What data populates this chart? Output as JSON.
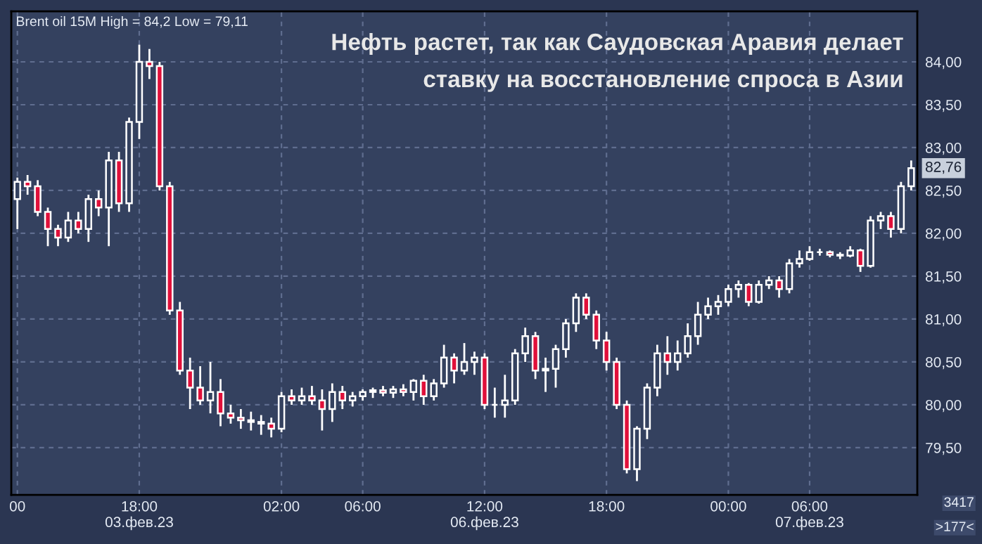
{
  "chart_data": {
    "type": "candlestick",
    "title": "Нефть растет, так как Саудовская Аравия делает\nставку на восстановление спроса в Азии",
    "subtitle": "Brent oil 15M High = 84,2 Low = 79,11",
    "annotations": [
      "82,76",
      "3417",
      ">177<"
    ],
    "categories": [
      "00",
      null,
      null,
      null,
      null,
      null,
      null,
      null,
      null,
      null,
      null,
      null,
      "18:00\n03.фев.23",
      null,
      null,
      null,
      null,
      null,
      null,
      null,
      null,
      null,
      null,
      null,
      null,
      null,
      "02:00",
      null,
      null,
      null,
      null,
      null,
      null,
      null,
      "06:00",
      null,
      null,
      null,
      null,
      null,
      null,
      null,
      null,
      null,
      null,
      null,
      "12:00\n06.фев.23",
      null,
      null,
      null,
      null,
      null,
      null,
      null,
      null,
      null,
      null,
      null,
      "18:00",
      null,
      null,
      null,
      null,
      null,
      null,
      null,
      null,
      null,
      null,
      null,
      "00:00",
      null,
      null,
      null,
      null,
      null,
      null,
      null,
      "06:00\n07.фев.23",
      null,
      null,
      null,
      null,
      null,
      null,
      null,
      null,
      null,
      null
    ],
    "ohlc": [
      [
        82.4,
        82.65,
        82.05,
        82.6
      ],
      [
        82.6,
        82.68,
        82.45,
        82.55
      ],
      [
        82.55,
        82.62,
        82.2,
        82.25
      ],
      [
        82.25,
        82.3,
        81.85,
        82.05
      ],
      [
        82.05,
        82.1,
        81.85,
        81.95
      ],
      [
        81.95,
        82.25,
        81.9,
        82.15
      ],
      [
        82.15,
        82.25,
        82.0,
        82.05
      ],
      [
        82.05,
        82.45,
        81.9,
        82.4
      ],
      [
        82.4,
        82.5,
        82.2,
        82.3
      ],
      [
        82.3,
        82.95,
        81.85,
        82.85
      ],
      [
        82.85,
        82.95,
        82.25,
        82.35
      ],
      [
        82.35,
        83.35,
        82.25,
        83.3
      ],
      [
        83.3,
        84.2,
        83.1,
        84.0
      ],
      [
        84.0,
        84.15,
        83.8,
        83.95
      ],
      [
        83.95,
        84.0,
        82.5,
        82.55
      ],
      [
        82.55,
        82.6,
        81.05,
        81.1
      ],
      [
        81.1,
        81.2,
        80.35,
        80.4
      ],
      [
        80.4,
        80.55,
        79.95,
        80.2
      ],
      [
        80.2,
        80.45,
        80.0,
        80.05
      ],
      [
        80.05,
        80.5,
        79.9,
        80.15
      ],
      [
        80.15,
        80.3,
        79.75,
        79.9
      ],
      [
        79.9,
        80.0,
        79.78,
        79.85
      ],
      [
        79.85,
        79.95,
        79.72,
        79.82
      ],
      [
        79.82,
        79.92,
        79.7,
        79.8
      ],
      [
        79.8,
        79.88,
        79.65,
        79.78
      ],
      [
        79.78,
        79.85,
        79.62,
        79.72
      ],
      [
        79.72,
        80.15,
        79.68,
        80.1
      ],
      [
        80.1,
        80.18,
        80.0,
        80.05
      ],
      [
        80.05,
        80.2,
        80.0,
        80.1
      ],
      [
        80.1,
        80.22,
        80.0,
        80.05
      ],
      [
        80.05,
        80.18,
        79.7,
        79.95
      ],
      [
        79.95,
        80.25,
        79.8,
        80.15
      ],
      [
        80.15,
        80.22,
        79.95,
        80.05
      ],
      [
        80.05,
        80.15,
        79.98,
        80.1
      ],
      [
        80.1,
        80.18,
        80.05,
        80.15
      ],
      [
        80.15,
        80.2,
        80.08,
        80.17
      ],
      [
        80.17,
        80.22,
        80.1,
        80.14
      ],
      [
        80.14,
        80.22,
        80.08,
        80.18
      ],
      [
        80.18,
        80.24,
        80.1,
        80.15
      ],
      [
        80.15,
        80.3,
        80.05,
        80.28
      ],
      [
        80.28,
        80.35,
        80.0,
        80.1
      ],
      [
        80.1,
        80.3,
        80.05,
        80.25
      ],
      [
        80.25,
        80.7,
        80.2,
        80.55
      ],
      [
        80.55,
        80.6,
        80.25,
        80.4
      ],
      [
        80.4,
        80.72,
        80.35,
        80.5
      ],
      [
        80.5,
        80.62,
        80.35,
        80.55
      ],
      [
        80.55,
        80.6,
        79.95,
        80.0
      ],
      [
        80.0,
        80.2,
        79.85,
        80.0
      ],
      [
        80.0,
        80.35,
        79.85,
        80.05
      ],
      [
        80.05,
        80.65,
        80.0,
        80.6
      ],
      [
        80.6,
        80.9,
        80.5,
        80.8
      ],
      [
        80.8,
        80.85,
        80.3,
        80.4
      ],
      [
        80.4,
        80.55,
        80.15,
        80.42
      ],
      [
        80.42,
        80.7,
        80.2,
        80.65
      ],
      [
        80.65,
        81.0,
        80.55,
        80.95
      ],
      [
        80.95,
        81.3,
        80.85,
        81.25
      ],
      [
        81.25,
        81.3,
        81.0,
        81.05
      ],
      [
        81.05,
        81.1,
        80.65,
        80.75
      ],
      [
        80.75,
        80.85,
        80.4,
        80.5
      ],
      [
        80.5,
        80.55,
        79.95,
        80.0
      ],
      [
        80.0,
        80.05,
        79.2,
        79.25
      ],
      [
        79.25,
        79.75,
        79.11,
        79.72
      ],
      [
        79.72,
        80.25,
        79.6,
        80.2
      ],
      [
        80.2,
        80.7,
        80.1,
        80.6
      ],
      [
        80.6,
        80.8,
        80.35,
        80.5
      ],
      [
        80.5,
        80.75,
        80.4,
        80.6
      ],
      [
        80.6,
        80.95,
        80.55,
        80.8
      ],
      [
        80.8,
        81.2,
        80.7,
        81.05
      ],
      [
        81.05,
        81.25,
        81.0,
        81.15
      ],
      [
        81.15,
        81.28,
        81.05,
        81.2
      ],
      [
        81.2,
        81.4,
        81.15,
        81.35
      ],
      [
        81.35,
        81.45,
        81.25,
        81.4
      ],
      [
        81.4,
        81.42,
        81.15,
        81.2
      ],
      [
        81.2,
        81.45,
        81.18,
        81.4
      ],
      [
        81.4,
        81.5,
        81.35,
        81.45
      ],
      [
        81.45,
        81.5,
        81.25,
        81.35
      ],
      [
        81.35,
        81.7,
        81.3,
        81.65
      ],
      [
        81.65,
        81.8,
        81.6,
        81.7
      ],
      [
        81.7,
        81.85,
        81.68,
        81.78
      ],
      [
        81.78,
        81.82,
        81.74,
        81.78
      ],
      [
        81.78,
        81.8,
        81.72,
        81.75
      ],
      [
        81.75,
        81.78,
        81.7,
        81.74
      ],
      [
        81.74,
        81.85,
        81.72,
        81.8
      ],
      [
        81.8,
        81.82,
        81.55,
        81.62
      ],
      [
        81.62,
        82.2,
        81.6,
        82.15
      ],
      [
        82.15,
        82.25,
        82.05,
        82.2
      ],
      [
        82.2,
        82.25,
        81.95,
        82.05
      ],
      [
        82.05,
        82.6,
        82.0,
        82.55
      ],
      [
        82.55,
        82.85,
        82.5,
        82.76
      ]
    ],
    "ylim": [
      78.95,
      84.59
    ],
    "yticks": [
      {
        "value": 79.5,
        "label": "79,50"
      },
      {
        "value": 80,
        "label": "80,00"
      },
      {
        "value": 80.5,
        "label": "80,50"
      },
      {
        "value": 81,
        "label": "81,00"
      },
      {
        "value": 81.5,
        "label": "81,50"
      },
      {
        "value": 82,
        "label": "82,00"
      },
      {
        "value": 82.5,
        "label": "82,50"
      },
      {
        "value": 83,
        "label": "83,00"
      },
      {
        "value": 83.5,
        "label": "83,50"
      },
      {
        "value": 84,
        "label": "84,00"
      }
    ],
    "grid": true
  }
}
